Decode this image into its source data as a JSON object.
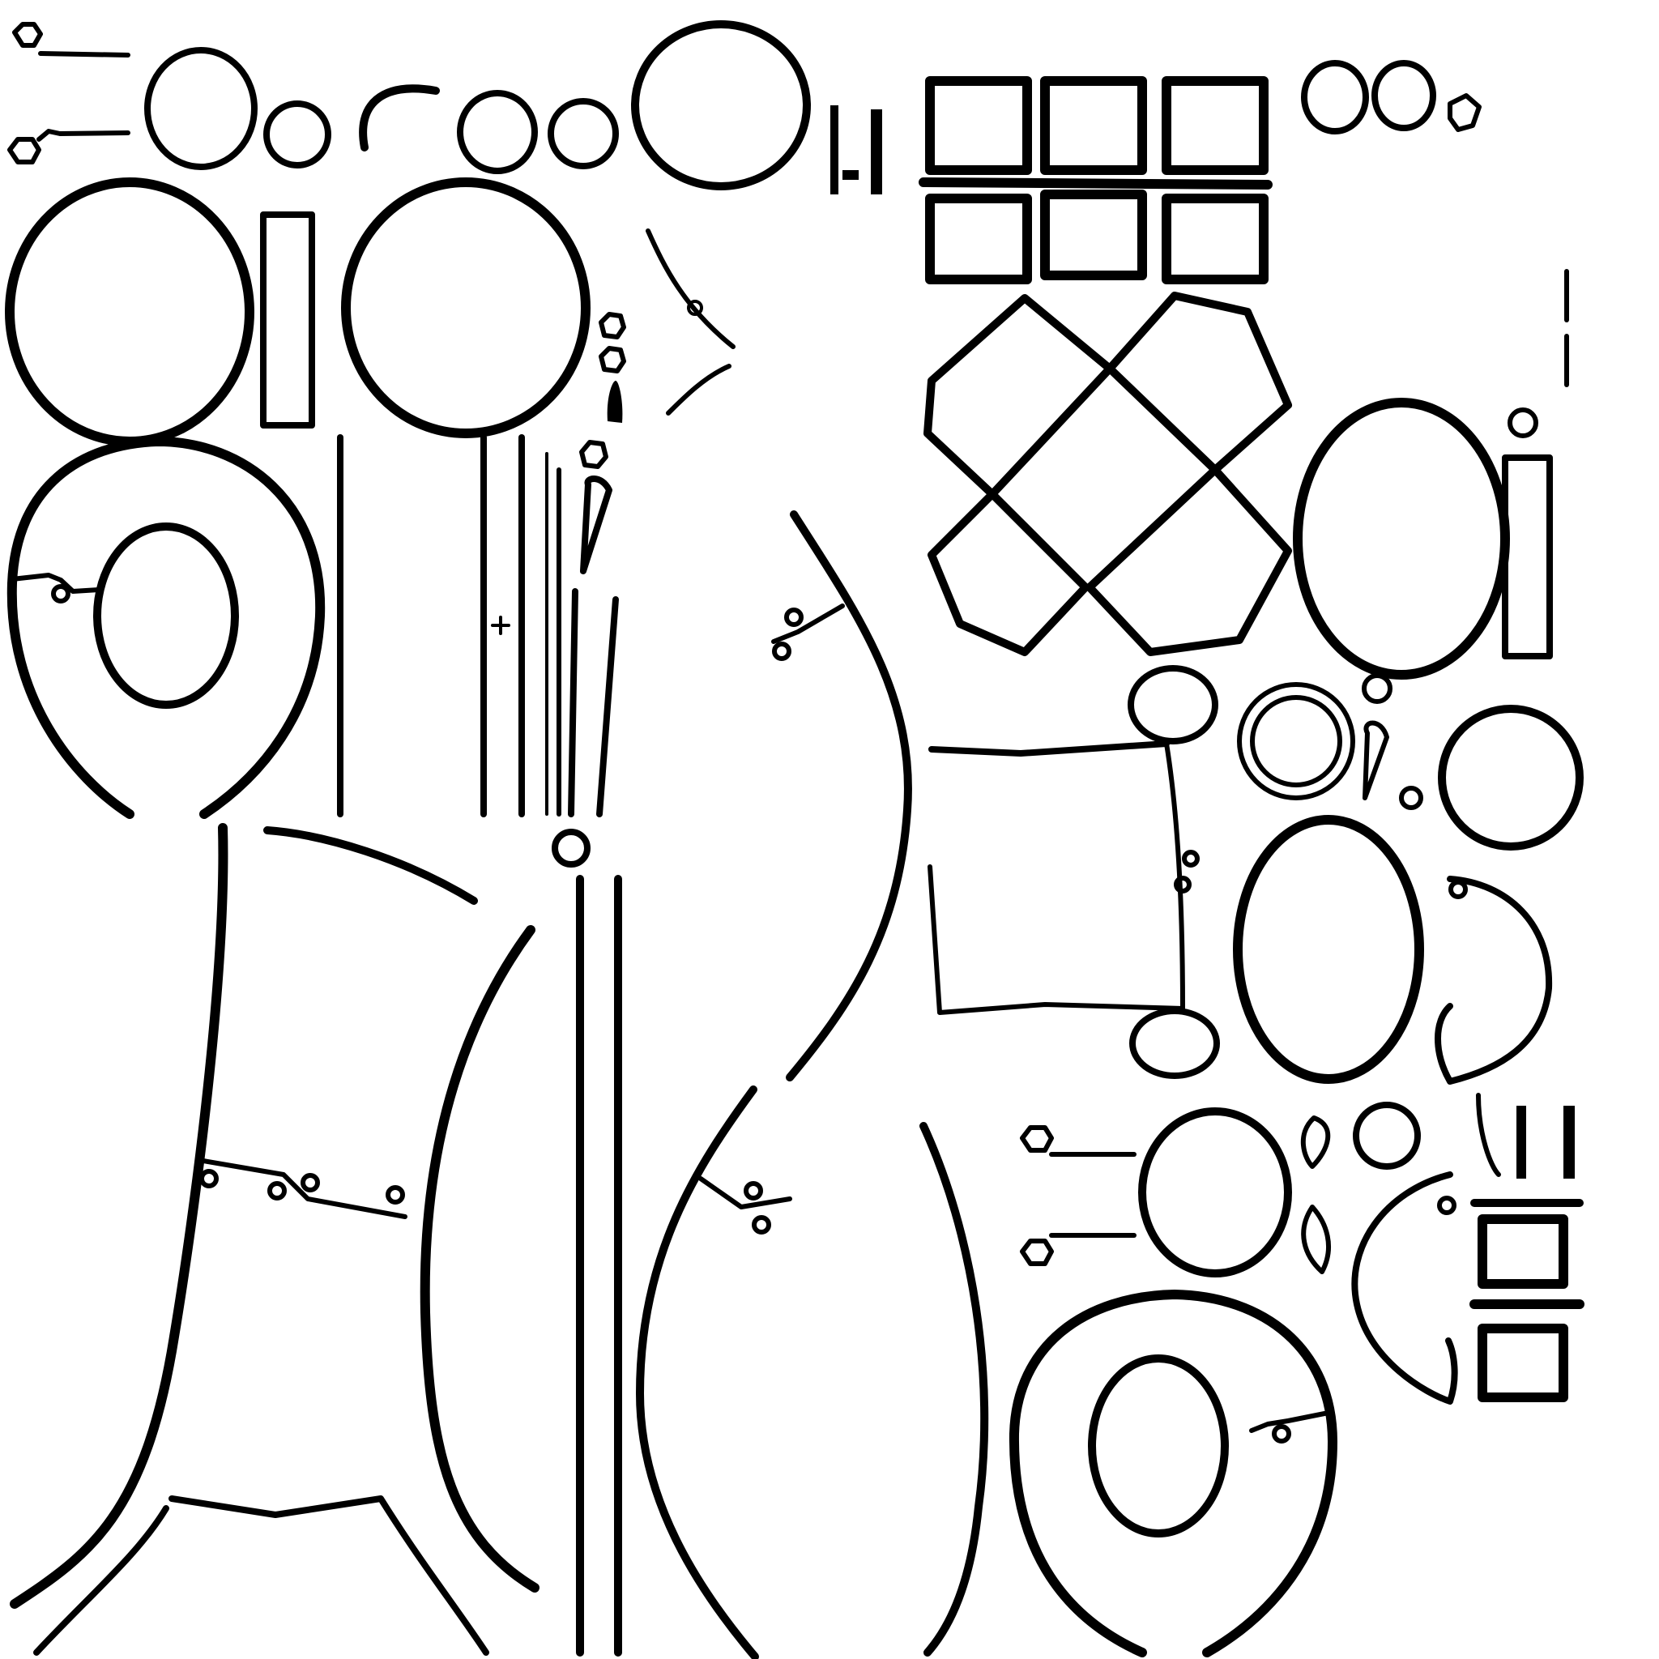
{
  "canvas": {
    "background_color": "#ffffff",
    "stroke_color": "#000000"
  },
  "sheet": {
    "type": "uv-texture-wireframe",
    "text_labels": []
  },
  "islands": [
    "small-ring-chain",
    "ring-large",
    "ring-medium",
    "ring-small",
    "hook-arc",
    "oval-tall",
    "rect-slot",
    "horseshoe-with-hole",
    "vertical-rails",
    "drop-pins",
    "body-panel-left",
    "curve-seam-center",
    "square-grid-blocks",
    "diamond-quadrants",
    "quad-panel",
    "ellipse-cluster",
    "horseshoe-with-hole-right"
  ]
}
